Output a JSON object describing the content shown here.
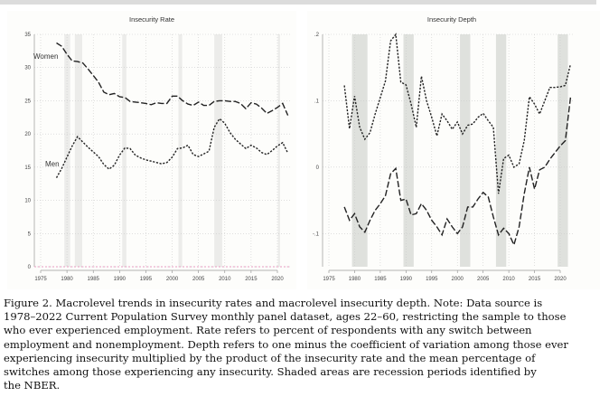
{
  "chart_data": [
    {
      "type": "line",
      "title": "Insecurity Rate",
      "xlim": [
        1975,
        2022
      ],
      "ylim": [
        0,
        35
      ],
      "xticks": [
        1975,
        1980,
        1985,
        1990,
        1995,
        2000,
        2005,
        2010,
        2015,
        2020
      ],
      "yticks": [
        0,
        5,
        10,
        15,
        20,
        25,
        30,
        35
      ],
      "grid": true,
      "recessions": [
        [
          1979.5,
          1980.6
        ],
        [
          1981.5,
          1982.9
        ],
        [
          1990.5,
          1991.3
        ],
        [
          2001.2,
          2001.9
        ],
        [
          2008,
          2009.5
        ],
        [
          2020.1,
          2020.5
        ]
      ],
      "x": [
        1978,
        1979,
        1980,
        1981,
        1982,
        1983,
        1984,
        1985,
        1986,
        1987,
        1988,
        1989,
        1990,
        1991,
        1992,
        1993,
        1994,
        1995,
        1996,
        1997,
        1998,
        1999,
        2000,
        2001,
        2002,
        2003,
        2004,
        2005,
        2006,
        2007,
        2008,
        2009,
        2010,
        2011,
        2012,
        2013,
        2014,
        2015,
        2016,
        2017,
        2018,
        2019,
        2020,
        2021,
        2022
      ],
      "series": [
        {
          "name": "Women",
          "style": "long-dash",
          "values": [
            33.7,
            33.2,
            32,
            31,
            30.9,
            30.7,
            29.8,
            28.8,
            27.8,
            26.3,
            25.9,
            26.1,
            25.6,
            25.5,
            24.9,
            24.8,
            24.7,
            24.6,
            24.4,
            24.7,
            24.6,
            24.6,
            25.7,
            25.7,
            25.0,
            24.5,
            24.3,
            24.8,
            24.3,
            24.3,
            24.9,
            25.0,
            25.0,
            24.9,
            24.9,
            24.6,
            23.8,
            24.7,
            24.5,
            23.9,
            23.1,
            23.5,
            24.0,
            24.6,
            22.8
          ]
        },
        {
          "name": "Men",
          "style": "short-dash",
          "values": [
            13.4,
            14.8,
            16.5,
            18.2,
            19.6,
            18.8,
            18.0,
            17.3,
            16.6,
            15.4,
            14.7,
            15.3,
            16.8,
            17.9,
            17.8,
            16.8,
            16.4,
            16.1,
            15.9,
            15.7,
            15.5,
            15.7,
            16.5,
            17.8,
            17.9,
            18.3,
            16.9,
            16.6,
            17.0,
            17.4,
            21.0,
            22.3,
            21.6,
            20.2,
            19.2,
            18.5,
            17.8,
            18.3,
            17.9,
            17.2,
            16.9,
            17.5,
            18.2,
            18.7,
            17.1
          ]
        }
      ]
    },
    {
      "type": "line",
      "title": "Insecurity Depth",
      "xlim": [
        1975,
        2022
      ],
      "ylim": [
        -0.15,
        0.2
      ],
      "xticks": [
        1975,
        1980,
        1985,
        1990,
        1995,
        2000,
        2005,
        2010,
        2015,
        2020
      ],
      "yticks": [
        -0.1,
        0,
        0.1,
        0.2
      ],
      "ytick_labels": [
        "-.1",
        "0",
        ".1",
        ".2"
      ],
      "grid": true,
      "recessions": [
        [
          1979.5,
          1982.5
        ],
        [
          1989.5,
          1991.5
        ],
        [
          2000.5,
          2002.5
        ],
        [
          2007.5,
          2009.5
        ],
        [
          2019.5,
          2021.5
        ]
      ],
      "x": [
        1978,
        1979,
        1980,
        1981,
        1982,
        1983,
        1984,
        1985,
        1986,
        1987,
        1988,
        1989,
        1990,
        1991,
        1992,
        1993,
        1994,
        1995,
        1996,
        1997,
        1998,
        1999,
        2000,
        2001,
        2002,
        2003,
        2004,
        2005,
        2006,
        2007,
        2008,
        2009,
        2010,
        2011,
        2012,
        2013,
        2014,
        2015,
        2016,
        2017,
        2018,
        2019,
        2020,
        2021,
        2022
      ],
      "series": [
        {
          "style": "short-dash",
          "values": [
            0.123,
            0.058,
            0.107,
            0.06,
            0.042,
            0.052,
            0.08,
            0.105,
            0.13,
            0.19,
            0.2,
            0.128,
            0.124,
            0.095,
            0.06,
            0.137,
            0.1,
            0.075,
            0.047,
            0.08,
            0.07,
            0.057,
            0.068,
            0.05,
            0.063,
            0.065,
            0.075,
            0.081,
            0.07,
            0.06,
            -0.04,
            0.013,
            0.018,
            0,
            0.005,
            0.04,
            0.106,
            0.095,
            0.08,
            0.1,
            0.12,
            0.12,
            0.121,
            0.123,
            0.155
          ]
        },
        {
          "style": "long-dash",
          "values": [
            -0.06,
            -0.08,
            -0.07,
            -0.09,
            -0.098,
            -0.08,
            -0.065,
            -0.055,
            -0.043,
            -0.01,
            -0.002,
            -0.05,
            -0.048,
            -0.072,
            -0.07,
            -0.055,
            -0.065,
            -0.08,
            -0.09,
            -0.102,
            -0.078,
            -0.09,
            -0.1,
            -0.09,
            -0.06,
            -0.06,
            -0.048,
            -0.038,
            -0.045,
            -0.075,
            -0.102,
            -0.092,
            -0.1,
            -0.117,
            -0.09,
            -0.04,
            0,
            -0.033,
            -0.004,
            0,
            0.012,
            0.022,
            0.032,
            0.04,
            0.105
          ]
        }
      ]
    }
  ],
  "caption": {
    "lines": [
      "Figure 2. Macrolevel trends in insecurity rates and macrolevel insecurity depth. Note: Data source is",
      "1978–2022 Current Population Survey monthly panel dataset, ages 22–60, restricting the sample to those",
      "who ever experienced employment. Rate refers to percent of respondents with any switch between",
      "employment and nonemployment. Depth refers to one minus the coefficient of variation among those ever",
      "experiencing insecurity multiplied by the product of the insecurity rate and the mean percentage of",
      "switches among those experiencing any insecurity. Shaded areas are recession periods identified by",
      "the NBER."
    ]
  }
}
